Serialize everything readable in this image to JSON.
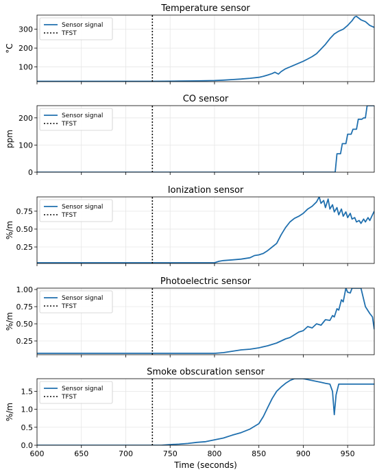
{
  "figure": {
    "xlabel": "Time (seconds)",
    "xlim": [
      600,
      980
    ],
    "xticks": [
      600,
      650,
      700,
      750,
      800,
      850,
      900,
      950
    ],
    "tfst_x": 730,
    "series_color": "#1f6fae",
    "tfst_color": "#000000"
  },
  "chart_data": [
    {
      "type": "line",
      "title": "Temperature sensor",
      "ylabel": "°C",
      "ylim": [
        22,
        375
      ],
      "yticks": [
        100,
        200,
        300
      ],
      "grid": true,
      "legend": {
        "placement": "top-left",
        "entries": [
          "Sensor signal",
          "TFST"
        ]
      },
      "series": [
        {
          "name": "Sensor signal",
          "x": [
            600,
            650,
            700,
            730,
            760,
            780,
            800,
            810,
            820,
            830,
            840,
            850,
            855,
            860,
            865,
            868,
            872,
            875,
            880,
            885,
            890,
            895,
            900,
            905,
            910,
            915,
            920,
            925,
            930,
            935,
            940,
            945,
            950,
            955,
            958,
            960,
            965,
            970,
            975,
            980
          ],
          "y": [
            24,
            24,
            24,
            24,
            25,
            26,
            28,
            30,
            33,
            36,
            40,
            45,
            50,
            57,
            65,
            72,
            62,
            75,
            90,
            100,
            110,
            120,
            130,
            142,
            155,
            170,
            195,
            220,
            250,
            275,
            290,
            300,
            320,
            345,
            365,
            368,
            350,
            340,
            320,
            310
          ]
        },
        {
          "name": "TFST",
          "x": [
            730,
            730
          ],
          "y": [
            22,
            375
          ]
        }
      ]
    },
    {
      "type": "line",
      "title": "CO sensor",
      "ylabel": "ppm",
      "ylim": [
        0,
        245
      ],
      "yticks": [
        0,
        100,
        200
      ],
      "grid": true,
      "legend": {
        "placement": "top-left",
        "entries": [
          "Sensor signal",
          "TFST"
        ]
      },
      "series": [
        {
          "name": "Sensor signal",
          "x": [
            600,
            700,
            800,
            900,
            934,
            936,
            938,
            942,
            944,
            948,
            950,
            954,
            956,
            960,
            962,
            966,
            968,
            970,
            972,
            975,
            980
          ],
          "y": [
            0,
            0,
            0,
            0,
            0,
            0,
            68,
            68,
            105,
            105,
            140,
            140,
            158,
            158,
            195,
            195,
            200,
            200,
            245,
            245,
            245
          ]
        },
        {
          "name": "TFST",
          "x": [
            730,
            730
          ],
          "y": [
            0,
            245
          ]
        }
      ]
    },
    {
      "type": "line",
      "title": "Ionization sensor",
      "ylabel": "%/m",
      "ylim": [
        0.02,
        0.95
      ],
      "yticks": [
        0.25,
        0.5,
        0.75
      ],
      "grid": true,
      "legend": {
        "placement": "top-left",
        "entries": [
          "Sensor signal",
          "TFST"
        ]
      },
      "series": [
        {
          "name": "Sensor signal",
          "x": [
            600,
            700,
            790,
            800,
            805,
            810,
            820,
            830,
            840,
            845,
            850,
            855,
            860,
            865,
            870,
            875,
            880,
            885,
            890,
            895,
            900,
            905,
            910,
            915,
            918,
            920,
            923,
            925,
            928,
            930,
            933,
            935,
            938,
            940,
            943,
            945,
            948,
            950,
            953,
            955,
            958,
            960,
            963,
            965,
            968,
            970,
            973,
            975,
            978,
            980
          ],
          "y": [
            0.03,
            0.03,
            0.03,
            0.03,
            0.05,
            0.06,
            0.07,
            0.08,
            0.1,
            0.13,
            0.14,
            0.16,
            0.2,
            0.25,
            0.3,
            0.42,
            0.52,
            0.6,
            0.65,
            0.68,
            0.72,
            0.78,
            0.82,
            0.88,
            0.95,
            0.86,
            0.9,
            0.8,
            0.92,
            0.78,
            0.84,
            0.74,
            0.8,
            0.7,
            0.78,
            0.68,
            0.74,
            0.66,
            0.72,
            0.64,
            0.66,
            0.6,
            0.62,
            0.58,
            0.64,
            0.6,
            0.66,
            0.62,
            0.7,
            0.75
          ]
        },
        {
          "name": "TFST",
          "x": [
            730,
            730
          ],
          "y": [
            0.02,
            0.95
          ]
        }
      ]
    },
    {
      "type": "line",
      "title": "Photoelectric sensor",
      "ylabel": "%/m",
      "ylim": [
        0.05,
        1.02
      ],
      "yticks": [
        0.25,
        0.5,
        0.75,
        1.0
      ],
      "grid": true,
      "legend": {
        "placement": "top-left",
        "entries": [
          "Sensor signal",
          "TFST"
        ]
      },
      "series": [
        {
          "name": "Sensor signal",
          "x": [
            600,
            700,
            800,
            810,
            820,
            830,
            840,
            850,
            860,
            865,
            870,
            875,
            880,
            885,
            890,
            895,
            900,
            905,
            910,
            915,
            920,
            925,
            930,
            933,
            935,
            938,
            940,
            943,
            945,
            948,
            950,
            953,
            955,
            960,
            965,
            970,
            975,
            978,
            980
          ],
          "y": [
            0.07,
            0.07,
            0.07,
            0.08,
            0.1,
            0.12,
            0.13,
            0.15,
            0.18,
            0.2,
            0.22,
            0.25,
            0.28,
            0.3,
            0.34,
            0.38,
            0.4,
            0.46,
            0.44,
            0.5,
            0.48,
            0.56,
            0.55,
            0.62,
            0.6,
            0.72,
            0.7,
            0.85,
            0.82,
            1.02,
            0.96,
            0.95,
            1.02,
            1.02,
            1.02,
            0.75,
            0.65,
            0.6,
            0.42
          ]
        },
        {
          "name": "TFST",
          "x": [
            730,
            730
          ],
          "y": [
            0.05,
            1.02
          ]
        }
      ]
    },
    {
      "type": "line",
      "title": "Smoke obscuration sensor",
      "ylabel": "%/m",
      "ylim": [
        0,
        1.85
      ],
      "yticks": [
        0.0,
        0.5,
        1.0,
        1.5
      ],
      "grid": true,
      "legend": {
        "placement": "top-left",
        "entries": [
          "Sensor signal",
          "TFST"
        ]
      },
      "series": [
        {
          "name": "Sensor signal",
          "x": [
            600,
            700,
            740,
            750,
            760,
            770,
            780,
            790,
            800,
            810,
            820,
            830,
            840,
            850,
            855,
            860,
            865,
            870,
            875,
            880,
            885,
            890,
            900,
            910,
            920,
            925,
            930,
            933,
            935,
            937,
            940,
            945,
            950,
            960,
            970,
            980
          ],
          "y": [
            0.0,
            0.0,
            0.0,
            0.02,
            0.03,
            0.05,
            0.08,
            0.1,
            0.15,
            0.2,
            0.28,
            0.35,
            0.45,
            0.6,
            0.8,
            1.05,
            1.3,
            1.5,
            1.62,
            1.72,
            1.8,
            1.85,
            1.85,
            1.8,
            1.75,
            1.72,
            1.7,
            1.5,
            0.85,
            1.4,
            1.7,
            1.7,
            1.7,
            1.7,
            1.7,
            1.7
          ]
        },
        {
          "name": "TFST",
          "x": [
            730,
            730
          ],
          "y": [
            0,
            1.85
          ]
        }
      ]
    }
  ]
}
